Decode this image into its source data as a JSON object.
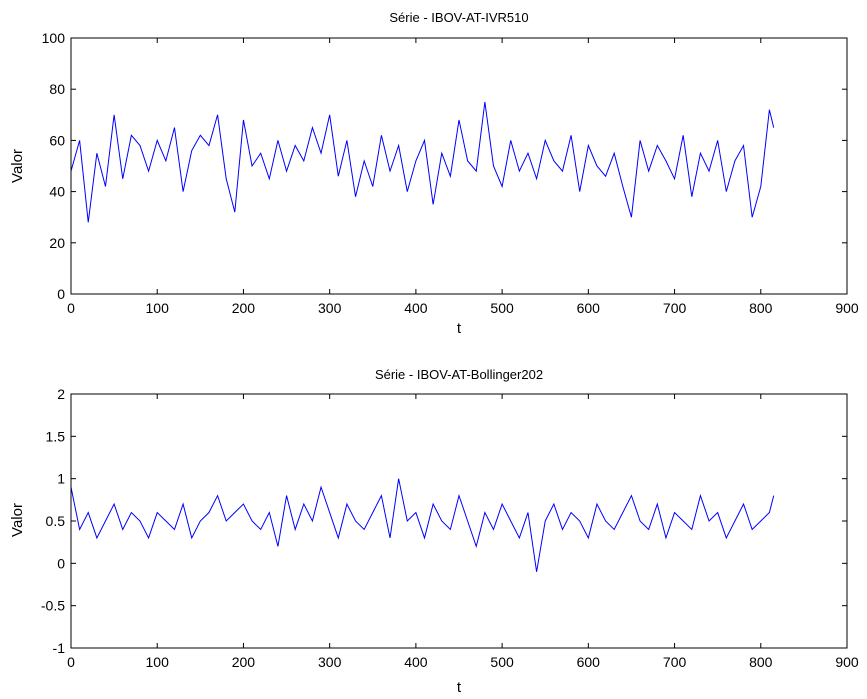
{
  "chart_data": [
    {
      "type": "line",
      "title": "Série - IBOV-AT-IVR510",
      "xlabel": "t",
      "ylabel": "Valor",
      "xlim": [
        0,
        900
      ],
      "ylim": [
        0,
        100
      ],
      "xticks": [
        "0",
        "100",
        "200",
        "300",
        "400",
        "500",
        "600",
        "700",
        "800",
        "900"
      ],
      "yticks": [
        "0",
        "20",
        "40",
        "60",
        "80",
        "100"
      ],
      "grid": false,
      "line_color": "#0000ff",
      "series": [
        {
          "x": [
            0,
            10,
            20,
            30,
            40,
            50,
            60,
            70,
            80,
            90,
            100,
            110,
            120,
            130,
            140,
            150,
            160,
            170,
            180,
            190,
            200,
            210,
            220,
            230,
            240,
            250,
            260,
            270,
            280,
            290,
            300,
            310,
            320,
            330,
            340,
            350,
            360,
            370,
            380,
            390,
            400,
            410,
            420,
            430,
            440,
            450,
            460,
            470,
            480,
            490,
            500,
            510,
            520,
            530,
            540,
            550,
            560,
            570,
            580,
            590,
            600,
            610,
            620,
            630,
            640,
            650,
            660,
            670,
            680,
            690,
            700,
            710,
            720,
            730,
            740,
            750,
            760,
            770,
            780,
            790,
            800,
            810,
            815
          ],
          "values": [
            48,
            60,
            28,
            55,
            42,
            70,
            45,
            62,
            58,
            48,
            60,
            52,
            65,
            40,
            56,
            62,
            58,
            70,
            45,
            32,
            68,
            50,
            55,
            45,
            60,
            48,
            58,
            52,
            65,
            55,
            70,
            46,
            60,
            38,
            52,
            42,
            62,
            48,
            58,
            40,
            52,
            60,
            35,
            55,
            46,
            68,
            52,
            48,
            75,
            50,
            42,
            60,
            48,
            55,
            45,
            60,
            52,
            48,
            62,
            40,
            58,
            50,
            46,
            55,
            42,
            30,
            60,
            48,
            58,
            52,
            45,
            62,
            38,
            55,
            48,
            60,
            40,
            52,
            58,
            30,
            42,
            72,
            65
          ]
        }
      ]
    },
    {
      "type": "line",
      "title": "Série - IBOV-AT-Bollinger202",
      "xlabel": "t",
      "ylabel": "Valor",
      "xlim": [
        0,
        900
      ],
      "ylim": [
        -1,
        2
      ],
      "xticks": [
        "0",
        "100",
        "200",
        "300",
        "400",
        "500",
        "600",
        "700",
        "800",
        "900"
      ],
      "yticks": [
        "-1",
        "-0.5",
        "0",
        "0.5",
        "1",
        "1.5",
        "2"
      ],
      "grid": false,
      "line_color": "#0000ff",
      "series": [
        {
          "x": [
            0,
            10,
            20,
            30,
            40,
            50,
            60,
            70,
            80,
            90,
            100,
            110,
            120,
            130,
            140,
            150,
            160,
            170,
            180,
            190,
            200,
            210,
            220,
            230,
            240,
            250,
            260,
            270,
            280,
            290,
            300,
            310,
            320,
            330,
            340,
            350,
            360,
            370,
            380,
            390,
            400,
            410,
            420,
            430,
            440,
            450,
            460,
            470,
            480,
            490,
            500,
            510,
            520,
            530,
            540,
            550,
            560,
            570,
            580,
            590,
            600,
            610,
            620,
            630,
            640,
            650,
            660,
            670,
            680,
            690,
            700,
            710,
            720,
            730,
            740,
            750,
            760,
            770,
            780,
            790,
            800,
            810,
            815
          ],
          "values": [
            0.9,
            0.4,
            0.6,
            0.3,
            0.5,
            0.7,
            0.4,
            0.6,
            0.5,
            0.3,
            0.6,
            0.5,
            0.4,
            0.7,
            0.3,
            0.5,
            0.6,
            0.8,
            0.5,
            0.6,
            0.7,
            0.5,
            0.4,
            0.6,
            0.2,
            0.8,
            0.4,
            0.7,
            0.5,
            0.9,
            0.6,
            0.3,
            0.7,
            0.5,
            0.4,
            0.6,
            0.8,
            0.3,
            1.0,
            0.5,
            0.6,
            0.3,
            0.7,
            0.5,
            0.4,
            0.8,
            0.5,
            0.2,
            0.6,
            0.4,
            0.7,
            0.5,
            0.3,
            0.6,
            -0.1,
            0.5,
            0.7,
            0.4,
            0.6,
            0.5,
            0.3,
            0.7,
            0.5,
            0.4,
            0.6,
            0.8,
            0.5,
            0.4,
            0.7,
            0.3,
            0.6,
            0.5,
            0.4,
            0.8,
            0.5,
            0.6,
            0.3,
            0.5,
            0.7,
            0.4,
            0.5,
            0.6,
            0.8
          ]
        }
      ]
    }
  ]
}
